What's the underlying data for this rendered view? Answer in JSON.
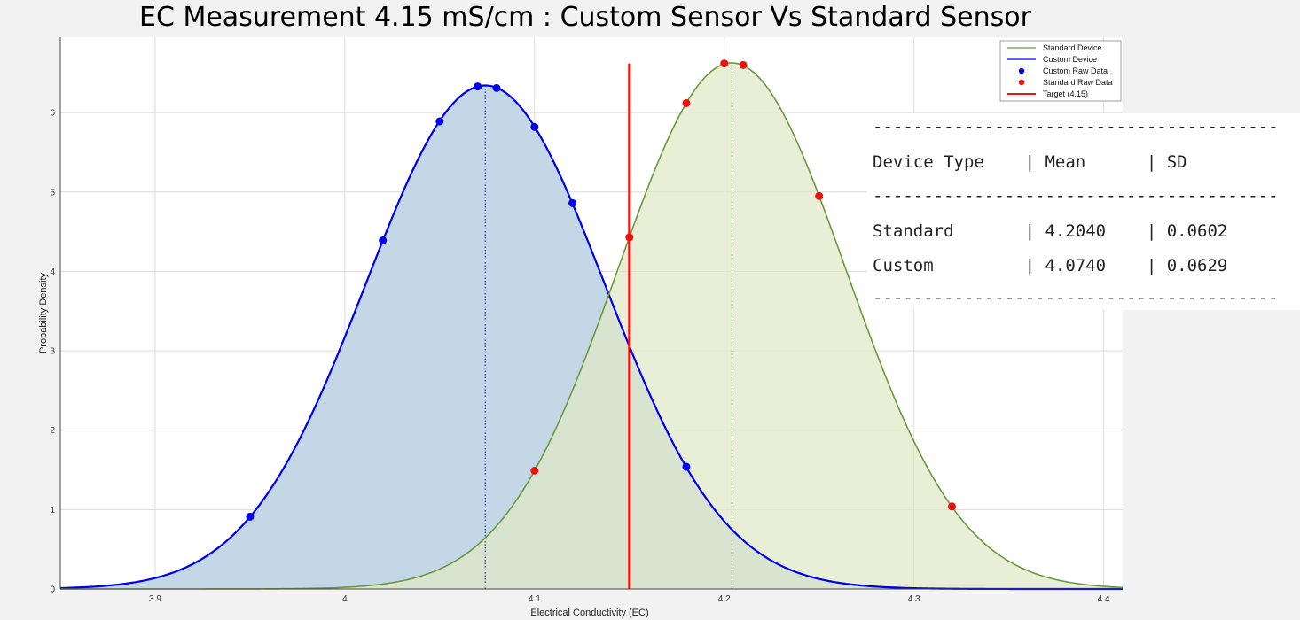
{
  "chart_data": {
    "type": "area",
    "title": "EC Measurement 4.15 mS/cm : Custom Sensor Vs Standard Sensor",
    "xlabel": "Electrical Conductivity (EC)",
    "ylabel": "Probability Density",
    "xlim": [
      3.85,
      4.41
    ],
    "ylim": [
      0,
      6.95
    ],
    "x_ticks": [
      "3.9",
      "4",
      "4.1",
      "4.2",
      "4.3",
      "4.4"
    ],
    "x_tick_values": [
      3.9,
      4.0,
      4.1,
      4.2,
      4.3,
      4.4
    ],
    "y_ticks": [
      "0",
      "1",
      "2",
      "3",
      "4",
      "5",
      "6"
    ],
    "y_tick_values": [
      0,
      1,
      2,
      3,
      4,
      5,
      6
    ],
    "grid": true,
    "legend_position": "top-right",
    "legend": [
      "Standard Device",
      "Custom Device",
      "Custom Raw Data",
      "Standard Raw Data",
      "Target (4.15)"
    ],
    "series": [
      {
        "name": "Standard Device",
        "kind": "normal-curve",
        "mean": 4.204,
        "sd": 0.0602,
        "color": "#6a9a3c",
        "fill": "#e1e7c8"
      },
      {
        "name": "Custom Device",
        "kind": "normal-curve",
        "mean": 4.074,
        "sd": 0.0629,
        "color": "#0000ee",
        "fill": "#c3d7e6"
      },
      {
        "name": "Custom Raw Data",
        "kind": "points",
        "color": "#0000ee",
        "x": [
          3.95,
          4.02,
          4.05,
          4.07,
          4.08,
          4.1,
          4.12,
          4.18
        ],
        "y": [
          0.91,
          4.39,
          5.89,
          6.33,
          6.31,
          5.82,
          4.86,
          1.54
        ]
      },
      {
        "name": "Standard Raw Data",
        "kind": "points",
        "color": "#ee1111",
        "x": [
          4.1,
          4.15,
          4.18,
          4.2,
          4.21,
          4.25,
          4.32
        ],
        "y": [
          1.49,
          4.43,
          6.12,
          6.62,
          6.6,
          4.95,
          1.04
        ]
      },
      {
        "name": "Target (4.15)",
        "kind": "vline",
        "x": 4.15,
        "y_top": 6.62,
        "color": "#ee1111"
      }
    ],
    "mean_lines": [
      4.074,
      4.204
    ]
  },
  "stats_table": {
    "separator": "----------------------------------------",
    "header": "Device Type    | Mean      | SD",
    "rows": [
      "Standard       | 4.2040    | 0.0602",
      "Custom         | 4.0740    | 0.0629"
    ]
  }
}
